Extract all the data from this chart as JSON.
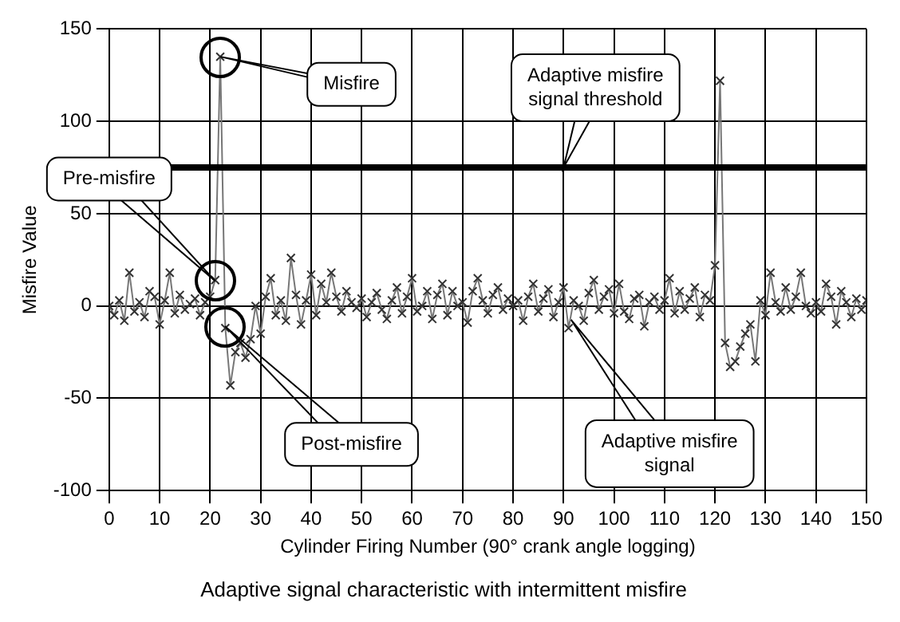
{
  "chart_data": {
    "type": "line",
    "title": "Adaptive signal characteristic with intermittent misfire",
    "xlabel": "Cylinder Firing Number (90° crank angle logging)",
    "ylabel": "Misfire Value",
    "x": [
      0,
      1,
      2,
      3,
      4,
      5,
      6,
      7,
      8,
      9,
      10,
      11,
      12,
      13,
      14,
      15,
      16,
      17,
      18,
      19,
      20,
      21,
      22,
      23,
      24,
      25,
      26,
      27,
      28,
      29,
      30,
      31,
      32,
      33,
      34,
      35,
      36,
      37,
      38,
      39,
      40,
      41,
      42,
      43,
      44,
      45,
      46,
      47,
      48,
      49,
      50,
      51,
      52,
      53,
      54,
      55,
      56,
      57,
      58,
      59,
      60,
      61,
      62,
      63,
      64,
      65,
      66,
      67,
      68,
      69,
      70,
      71,
      72,
      73,
      74,
      75,
      76,
      77,
      78,
      79,
      80,
      81,
      82,
      83,
      84,
      85,
      86,
      87,
      88,
      89,
      90,
      91,
      92,
      93,
      94,
      95,
      96,
      97,
      98,
      99,
      100,
      101,
      102,
      103,
      104,
      105,
      106,
      107,
      108,
      109,
      110,
      111,
      112,
      113,
      114,
      115,
      116,
      117,
      118,
      119,
      120,
      121,
      122,
      123,
      124,
      125,
      126,
      127,
      128,
      129,
      130,
      131,
      132,
      133,
      134,
      135,
      136,
      137,
      138,
      139,
      140,
      141,
      142,
      143,
      144,
      145,
      146,
      147,
      148,
      149,
      150
    ],
    "series": [
      {
        "color": "#333333",
        "values": [
          0,
          -5,
          3,
          -8,
          18,
          -3,
          2,
          -6,
          8,
          5,
          -10,
          3,
          18,
          -4,
          6,
          -2,
          1,
          4,
          -5,
          2,
          5,
          14,
          135,
          -12,
          -43,
          -25,
          -20,
          -28,
          -18,
          0,
          -15,
          5,
          15,
          -5,
          3,
          -8,
          26,
          6,
          -10,
          3,
          17,
          -5,
          12,
          2,
          18,
          5,
          -3,
          8,
          2,
          -1,
          4,
          -6,
          2,
          7,
          -2,
          -7,
          3,
          10,
          -4,
          5,
          15,
          -3,
          0,
          8,
          -7,
          6,
          12,
          -5,
          8,
          0,
          2,
          -9,
          8,
          15,
          3,
          -4,
          6,
          10,
          -2,
          4,
          0,
          3,
          -8,
          5,
          12,
          -3,
          4,
          9,
          -6,
          2,
          10,
          -12,
          3,
          0,
          -8,
          7,
          14,
          -2,
          5,
          9,
          -4,
          12,
          -3,
          -7,
          4,
          6,
          -11,
          2,
          5,
          -2,
          3,
          15,
          -4,
          8,
          -2,
          4,
          10,
          -6,
          6,
          3,
          22,
          122,
          -20,
          -33,
          -30,
          -22,
          -15,
          -10,
          -30,
          3,
          -5,
          18,
          2,
          -3,
          10,
          -2,
          5,
          18,
          0,
          -4,
          2,
          -3,
          12,
          5,
          -10,
          8,
          2,
          -6,
          4,
          -2,
          3
        ]
      }
    ],
    "xlim": [
      0,
      150
    ],
    "xticks": [
      0,
      10,
      20,
      30,
      40,
      50,
      60,
      70,
      80,
      90,
      100,
      110,
      120,
      130,
      140,
      150
    ],
    "ylim": [
      -100,
      150
    ],
    "yticks": [
      -100,
      -50,
      0,
      50,
      100,
      150
    ],
    "grid": true,
    "legend": false,
    "marker": "cross",
    "line_style": "solid",
    "ref_lines": [
      {
        "axis": "y",
        "value": 75,
        "label": "Adaptive misfire signal threshold",
        "color": "#000000"
      }
    ],
    "annotations": [
      "Misfire",
      "Pre-misfire",
      "Post-misfire",
      "Adaptive misfire signal"
    ]
  }
}
